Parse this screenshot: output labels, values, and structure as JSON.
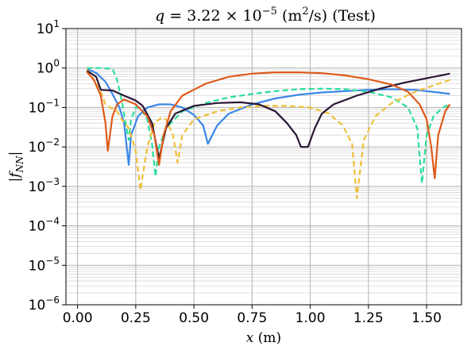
{
  "chart_data": {
    "type": "line",
    "title": "q = 3.22 × 10⁻⁵ (m²/s) (Test)",
    "title_parts": {
      "q": "q",
      "eq": " = 3.22 × 10",
      "exp": "−5",
      "unit_open": " (m",
      "unit_sup": "2",
      "unit_close": "/s) (Test)"
    },
    "xlabel": "x (m)",
    "xlabel_parts": {
      "var": "x",
      "unit": " (m)"
    },
    "ylabel": "|f_NN|",
    "ylabel_parts": {
      "f": "f",
      "sub": "NN"
    },
    "xlim": [
      -0.05,
      1.65
    ],
    "ylim_exp": [
      -6,
      1
    ],
    "yscale": "log",
    "grid": true,
    "xticks": [
      0.0,
      0.25,
      0.5,
      0.75,
      1.0,
      1.25,
      1.5
    ],
    "xtick_labels": [
      "0.00",
      "0.25",
      "0.50",
      "0.75",
      "1.00",
      "1.25",
      "1.50"
    ],
    "yticks": [
      {
        "base": "10",
        "exp": "1"
      },
      {
        "base": "10",
        "exp": "0"
      },
      {
        "base": "10",
        "exp": "−1"
      },
      {
        "base": "10",
        "exp": "−2"
      },
      {
        "base": "10",
        "exp": "−3"
      },
      {
        "base": "10",
        "exp": "−4"
      },
      {
        "base": "10",
        "exp": "−5"
      },
      {
        "base": "10",
        "exp": "−6"
      }
    ],
    "series": [
      {
        "color": "#3a86e8",
        "dash": "solid",
        "points": [
          [
            0.04,
            0.95
          ],
          [
            0.08,
            0.75
          ],
          [
            0.12,
            0.45
          ],
          [
            0.15,
            0.22
          ],
          [
            0.18,
            0.1
          ],
          [
            0.2,
            0.04
          ],
          [
            0.22,
            0.0035
          ],
          [
            0.23,
            0.02
          ],
          [
            0.26,
            0.06
          ],
          [
            0.3,
            0.1
          ],
          [
            0.35,
            0.12
          ],
          [
            0.4,
            0.12
          ],
          [
            0.45,
            0.1
          ],
          [
            0.5,
            0.065
          ],
          [
            0.54,
            0.035
          ],
          [
            0.56,
            0.012
          ],
          [
            0.6,
            0.035
          ],
          [
            0.65,
            0.07
          ],
          [
            0.75,
            0.12
          ],
          [
            0.85,
            0.17
          ],
          [
            0.95,
            0.21
          ],
          [
            1.05,
            0.24
          ],
          [
            1.15,
            0.26
          ],
          [
            1.25,
            0.28
          ],
          [
            1.35,
            0.29
          ],
          [
            1.45,
            0.28
          ],
          [
            1.55,
            0.24
          ],
          [
            1.6,
            0.22
          ]
        ]
      },
      {
        "color": "#2bdd9c",
        "dash": "dashed",
        "points": [
          [
            0.04,
            1.0
          ],
          [
            0.1,
            1.0
          ],
          [
            0.15,
            0.95
          ],
          [
            0.17,
            0.5
          ],
          [
            0.19,
            0.15
          ],
          [
            0.21,
            0.03
          ],
          [
            0.22,
            0.015
          ],
          [
            0.23,
            0.05
          ],
          [
            0.25,
            0.1
          ],
          [
            0.27,
            0.1
          ],
          [
            0.3,
            0.05
          ],
          [
            0.32,
            0.012
          ],
          [
            0.335,
            0.0018
          ],
          [
            0.35,
            0.01
          ],
          [
            0.38,
            0.03
          ],
          [
            0.45,
            0.08
          ],
          [
            0.55,
            0.13
          ],
          [
            0.65,
            0.18
          ],
          [
            0.75,
            0.22
          ],
          [
            0.85,
            0.26
          ],
          [
            0.95,
            0.29
          ],
          [
            1.05,
            0.3
          ],
          [
            1.15,
            0.29
          ],
          [
            1.25,
            0.25
          ],
          [
            1.35,
            0.18
          ],
          [
            1.42,
            0.1
          ],
          [
            1.46,
            0.03
          ],
          [
            1.48,
            0.0012
          ],
          [
            1.5,
            0.02
          ],
          [
            1.53,
            0.06
          ],
          [
            1.57,
            0.1
          ],
          [
            1.6,
            0.12
          ]
        ]
      },
      {
        "color": "#f0c038",
        "dash": "dashed",
        "points": [
          [
            0.04,
            0.95
          ],
          [
            0.07,
            0.5
          ],
          [
            0.1,
            0.25
          ],
          [
            0.12,
            0.12
          ],
          [
            0.14,
            0.1
          ],
          [
            0.17,
            0.08
          ],
          [
            0.19,
            0.05
          ],
          [
            0.22,
            0.03
          ],
          [
            0.25,
            0.008
          ],
          [
            0.27,
            0.0008
          ],
          [
            0.3,
            0.01
          ],
          [
            0.33,
            0.04
          ],
          [
            0.36,
            0.055
          ],
          [
            0.38,
            0.05
          ],
          [
            0.41,
            0.02
          ],
          [
            0.43,
            0.004
          ],
          [
            0.45,
            0.02
          ],
          [
            0.5,
            0.05
          ],
          [
            0.6,
            0.08
          ],
          [
            0.7,
            0.1
          ],
          [
            0.8,
            0.11
          ],
          [
            0.9,
            0.11
          ],
          [
            1.0,
            0.1
          ],
          [
            1.08,
            0.07
          ],
          [
            1.14,
            0.035
          ],
          [
            1.18,
            0.012
          ],
          [
            1.2,
            0.0005
          ],
          [
            1.23,
            0.015
          ],
          [
            1.28,
            0.06
          ],
          [
            1.35,
            0.13
          ],
          [
            1.45,
            0.25
          ],
          [
            1.55,
            0.4
          ],
          [
            1.6,
            0.5
          ]
        ]
      },
      {
        "color": "#2a1636",
        "dash": "solid",
        "points": [
          [
            0.04,
            0.85
          ],
          [
            0.08,
            0.6
          ],
          [
            0.1,
            0.28
          ],
          [
            0.15,
            0.27
          ],
          [
            0.2,
            0.2
          ],
          [
            0.25,
            0.15
          ],
          [
            0.28,
            0.11
          ],
          [
            0.32,
            0.04
          ],
          [
            0.35,
            0.005
          ],
          [
            0.38,
            0.03
          ],
          [
            0.42,
            0.07
          ],
          [
            0.5,
            0.11
          ],
          [
            0.6,
            0.13
          ],
          [
            0.7,
            0.135
          ],
          [
            0.78,
            0.12
          ],
          [
            0.85,
            0.08
          ],
          [
            0.9,
            0.04
          ],
          [
            0.94,
            0.02
          ],
          [
            0.96,
            0.01
          ],
          [
            0.99,
            0.01
          ],
          [
            1.02,
            0.03
          ],
          [
            1.05,
            0.07
          ],
          [
            1.1,
            0.12
          ],
          [
            1.2,
            0.2
          ],
          [
            1.3,
            0.3
          ],
          [
            1.4,
            0.42
          ],
          [
            1.5,
            0.55
          ],
          [
            1.6,
            0.72
          ]
        ]
      },
      {
        "color": "#e05a1a",
        "dash": "solid",
        "points": [
          [
            0.04,
            0.8
          ],
          [
            0.07,
            0.5
          ],
          [
            0.1,
            0.2
          ],
          [
            0.12,
            0.04
          ],
          [
            0.13,
            0.008
          ],
          [
            0.15,
            0.06
          ],
          [
            0.17,
            0.12
          ],
          [
            0.2,
            0.16
          ],
          [
            0.25,
            0.12
          ],
          [
            0.3,
            0.06
          ],
          [
            0.33,
            0.02
          ],
          [
            0.35,
            0.0035
          ],
          [
            0.37,
            0.02
          ],
          [
            0.4,
            0.08
          ],
          [
            0.45,
            0.2
          ],
          [
            0.55,
            0.4
          ],
          [
            0.65,
            0.6
          ],
          [
            0.75,
            0.72
          ],
          [
            0.85,
            0.78
          ],
          [
            0.95,
            0.78
          ],
          [
            1.05,
            0.74
          ],
          [
            1.15,
            0.65
          ],
          [
            1.25,
            0.52
          ],
          [
            1.35,
            0.38
          ],
          [
            1.42,
            0.25
          ],
          [
            1.47,
            0.12
          ],
          [
            1.5,
            0.05
          ],
          [
            1.52,
            0.01
          ],
          [
            1.535,
            0.0016
          ],
          [
            1.55,
            0.02
          ],
          [
            1.58,
            0.08
          ],
          [
            1.6,
            0.12
          ]
        ]
      }
    ]
  }
}
